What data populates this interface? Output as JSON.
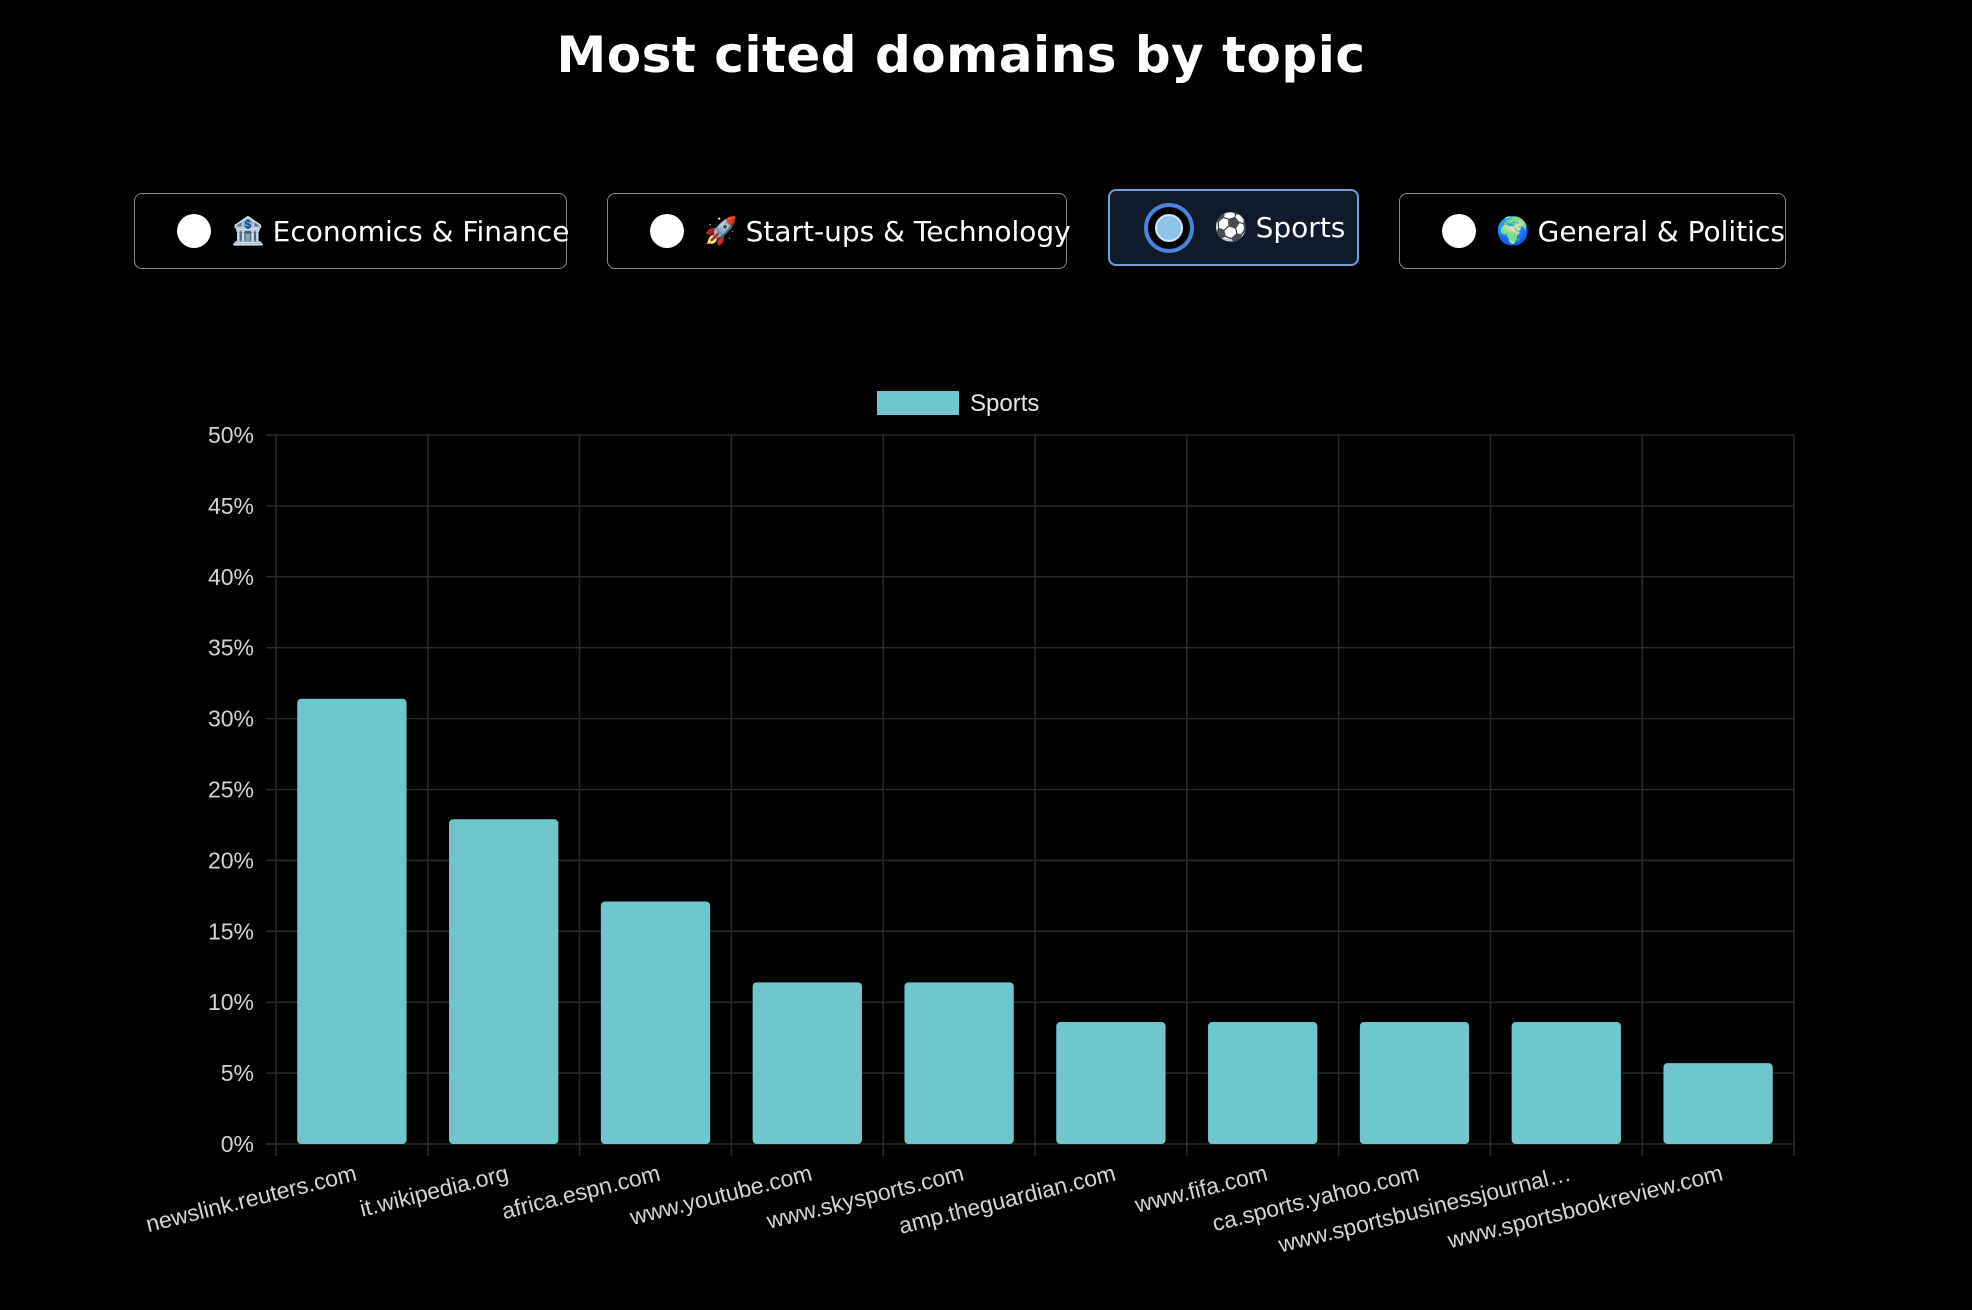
{
  "page": {
    "title": "Most cited domains by topic"
  },
  "topics": [
    {
      "label": "Economics & Finance",
      "icon": "🏦",
      "icon_name": "bank-icon",
      "selected": false
    },
    {
      "label": "Start-ups & Technology",
      "icon": "🚀",
      "icon_name": "rocket-icon",
      "selected": false
    },
    {
      "label": "Sports",
      "icon": "⚽",
      "icon_name": "soccer-ball-icon",
      "selected": true
    },
    {
      "label": "General & Politics",
      "icon": "🌍",
      "icon_name": "globe-icon",
      "selected": false
    }
  ],
  "colors": {
    "bar": "#6fc7cc",
    "grid": "#2a2a2a",
    "selected_border": "#6f9fd8"
  },
  "chart_data": {
    "type": "bar",
    "legend_position": "top-center",
    "grid": true,
    "categories": [
      "newslink.reuters.com",
      "it.wikipedia.org",
      "africa.espn.com",
      "www.youtube.com",
      "www.skysports.com",
      "amp.theguardian.com",
      "www.fifa.com",
      "ca.sports.yahoo.com",
      "www.sportsbusinessjournal…",
      "www.sportsbookreview.com"
    ],
    "series": [
      {
        "name": "Sports",
        "values": [
          31.4,
          22.9,
          17.1,
          11.4,
          11.4,
          8.6,
          8.6,
          8.6,
          8.6,
          5.7
        ]
      }
    ],
    "ylim": [
      0,
      50
    ],
    "yticks": [
      "0%",
      "5%",
      "10%",
      "15%",
      "20%",
      "25%",
      "30%",
      "35%",
      "40%",
      "45%",
      "50%"
    ],
    "xlabel": "",
    "ylabel": ""
  }
}
